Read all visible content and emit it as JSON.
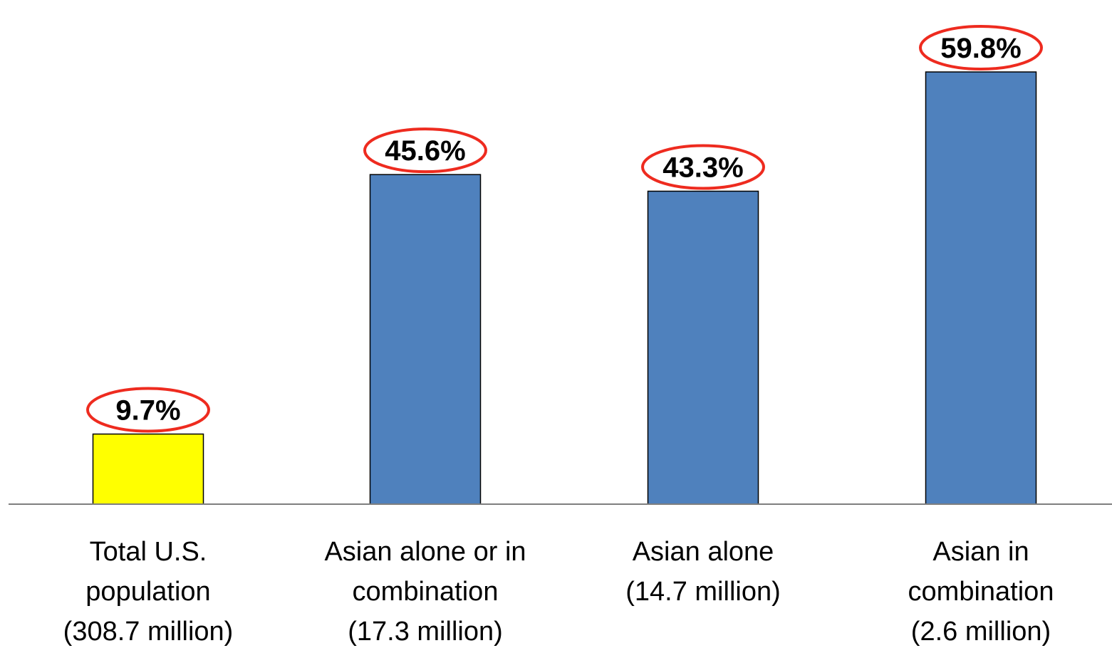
{
  "chart_data": {
    "type": "bar",
    "title": "",
    "xlabel": "",
    "ylabel": "",
    "ylim": [
      0,
      65
    ],
    "grid": false,
    "legend": "none",
    "categories": [
      [
        "Total U.S.",
        "population",
        "(308.7 million)"
      ],
      [
        "Asian alone or in",
        "combination",
        "(17.3 million)"
      ],
      [
        "Asian alone",
        "(14.7 million)"
      ],
      [
        "Asian in",
        "combination",
        "(2.6 million)"
      ]
    ],
    "values": [
      9.7,
      45.6,
      43.3,
      59.8
    ],
    "value_labels": [
      "9.7%",
      "45.6%",
      "43.3%",
      "59.8%"
    ],
    "bar_colors": [
      "#ffff00",
      "#4f81bd",
      "#4f81bd",
      "#4f81bd"
    ],
    "bar_outline_color": "#000000",
    "highlight_ellipse_color": "#ee2b1f",
    "axis_color": "#7f7f7f"
  }
}
